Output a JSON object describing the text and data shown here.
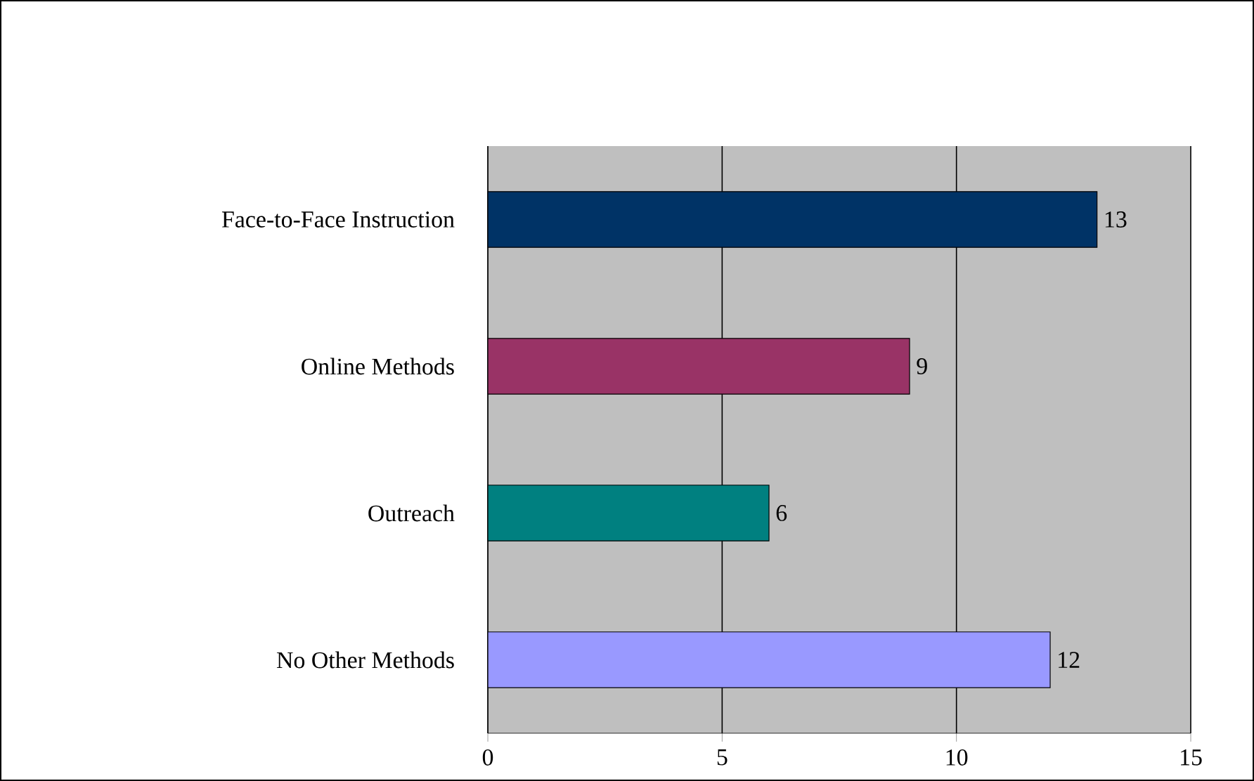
{
  "chart_data": {
    "type": "bar",
    "orientation": "horizontal",
    "categories": [
      "Face-to-Face Instruction",
      "Online Methods",
      "Outreach",
      "No Other Methods"
    ],
    "values": [
      13,
      9,
      6,
      12
    ],
    "colors": [
      "#003366",
      "#993366",
      "#008080",
      "#9999ff"
    ],
    "xlim": [
      0,
      15
    ],
    "xticks": [
      0,
      5,
      10,
      15
    ],
    "grid": "x",
    "data_labels": true
  }
}
